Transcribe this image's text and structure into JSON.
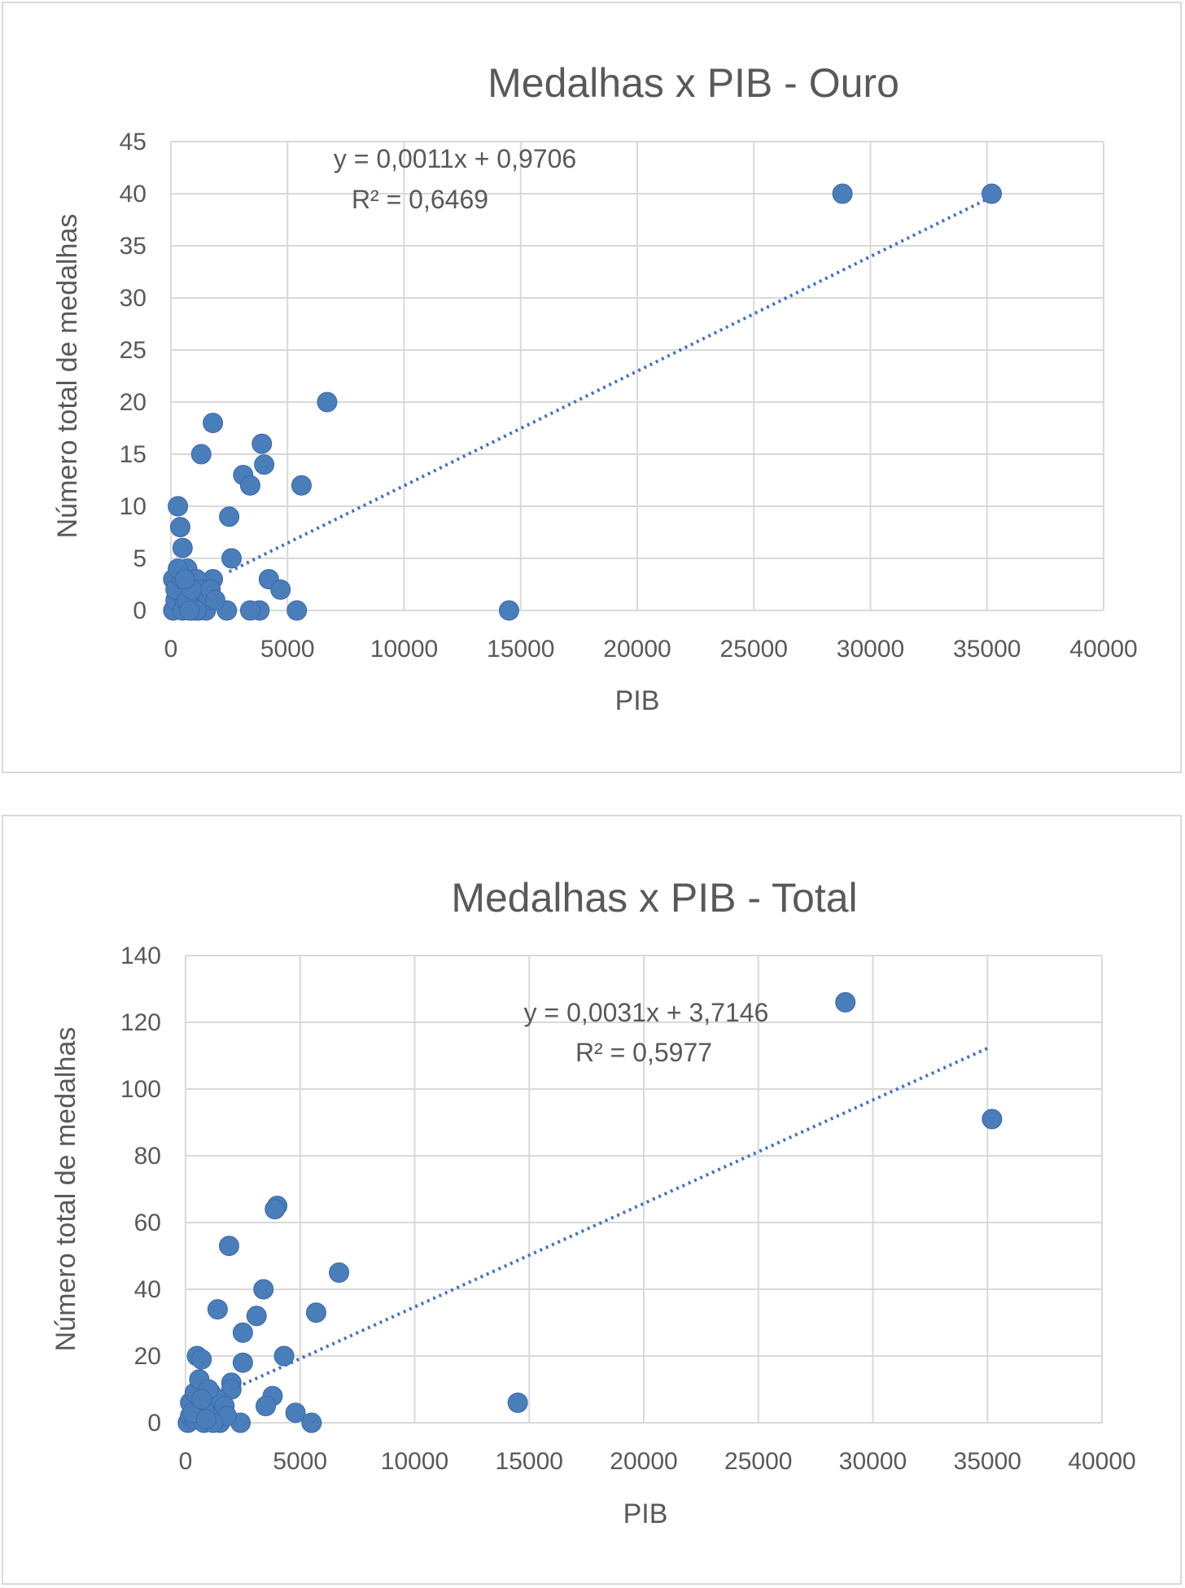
{
  "chart_data": [
    {
      "type": "scatter",
      "title": "Medalhas x PIB - Ouro",
      "xlabel": "PIB",
      "ylabel": "Número total de medalhas",
      "xlim": [
        0,
        40000
      ],
      "ylim": [
        0,
        45
      ],
      "xticks": [
        "0",
        "5000",
        "10000",
        "15000",
        "20000",
        "25000",
        "30000",
        "35000",
        "40000"
      ],
      "yticks": [
        "0",
        "5",
        "10",
        "15",
        "20",
        "25",
        "30",
        "35",
        "40",
        "45"
      ],
      "grid": true,
      "legend": "none",
      "color": "#4a7ebb",
      "trendline": {
        "equation": "y = 0,0011x + 0,9706",
        "r2": "R² = 0,6469",
        "slope": 0.0011,
        "intercept": 0.9706,
        "x_range": [
          2500,
          35000
        ]
      },
      "points": [
        [
          28800,
          40
        ],
        [
          35200,
          40
        ],
        [
          6700,
          20
        ],
        [
          1800,
          18
        ],
        [
          3900,
          16
        ],
        [
          1300,
          15
        ],
        [
          4000,
          14
        ],
        [
          3100,
          13
        ],
        [
          3400,
          12
        ],
        [
          5600,
          12
        ],
        [
          300,
          10
        ],
        [
          2500,
          9
        ],
        [
          400,
          8
        ],
        [
          500,
          6
        ],
        [
          2600,
          5
        ],
        [
          4200,
          3
        ],
        [
          4700,
          2
        ],
        [
          1800,
          3
        ],
        [
          14500,
          0
        ],
        [
          5400,
          0
        ],
        [
          3800,
          0
        ],
        [
          3400,
          0
        ],
        [
          2400,
          0
        ],
        [
          100,
          0
        ],
        [
          200,
          1
        ],
        [
          300,
          2
        ],
        [
          400,
          3
        ],
        [
          500,
          0
        ],
        [
          600,
          1
        ],
        [
          700,
          4
        ],
        [
          800,
          2
        ],
        [
          900,
          0
        ],
        [
          1000,
          1
        ],
        [
          1100,
          3
        ],
        [
          1200,
          0
        ],
        [
          1300,
          2
        ],
        [
          1400,
          1
        ],
        [
          1500,
          0
        ],
        [
          1600,
          1
        ],
        [
          100,
          3
        ],
        [
          200,
          2
        ],
        [
          500,
          3
        ],
        [
          700,
          1
        ],
        [
          900,
          2
        ],
        [
          1100,
          0
        ],
        [
          1700,
          2
        ],
        [
          1900,
          1
        ],
        [
          300,
          4
        ],
        [
          600,
          3
        ],
        [
          800,
          0
        ]
      ]
    },
    {
      "type": "scatter",
      "title": "Medalhas x PIB - Total",
      "xlabel": "PIB",
      "ylabel": "Número total de medalhas",
      "xlim": [
        0,
        40000
      ],
      "ylim": [
        0,
        140
      ],
      "xticks": [
        "0",
        "5000",
        "10000",
        "15000",
        "20000",
        "25000",
        "30000",
        "35000",
        "40000"
      ],
      "yticks": [
        "0",
        "20",
        "40",
        "60",
        "80",
        "100",
        "120",
        "140"
      ],
      "grid": true,
      "legend": "none",
      "color": "#4a7ebb",
      "trendline": {
        "equation": "y = 0,0031x + 3,7146",
        "r2": "R² = 0,5977",
        "slope": 0.0031,
        "intercept": 3.7146,
        "x_range": [
          2000,
          35000
        ]
      },
      "points": [
        [
          28800,
          126
        ],
        [
          35200,
          91
        ],
        [
          4000,
          65
        ],
        [
          3900,
          64
        ],
        [
          1900,
          53
        ],
        [
          6700,
          45
        ],
        [
          3400,
          40
        ],
        [
          1400,
          34
        ],
        [
          5700,
          33
        ],
        [
          3100,
          32
        ],
        [
          2500,
          27
        ],
        [
          500,
          20
        ],
        [
          4300,
          20
        ],
        [
          700,
          19
        ],
        [
          2500,
          18
        ],
        [
          14500,
          6
        ],
        [
          3800,
          8
        ],
        [
          3500,
          5
        ],
        [
          4800,
          3
        ],
        [
          5500,
          0
        ],
        [
          2400,
          0
        ],
        [
          2000,
          12
        ],
        [
          2000,
          10
        ],
        [
          100,
          0
        ],
        [
          200,
          2
        ],
        [
          300,
          5
        ],
        [
          400,
          1
        ],
        [
          500,
          8
        ],
        [
          600,
          3
        ],
        [
          700,
          11
        ],
        [
          800,
          0
        ],
        [
          900,
          6
        ],
        [
          1000,
          2
        ],
        [
          1100,
          9
        ],
        [
          1200,
          4
        ],
        [
          1300,
          1
        ],
        [
          1400,
          7
        ],
        [
          1500,
          0
        ],
        [
          1600,
          3
        ],
        [
          1700,
          5
        ],
        [
          1800,
          2
        ],
        [
          200,
          6
        ],
        [
          400,
          9
        ],
        [
          600,
          13
        ],
        [
          800,
          4
        ],
        [
          1000,
          10
        ],
        [
          1200,
          0
        ],
        [
          300,
          3
        ],
        [
          700,
          7
        ],
        [
          900,
          1
        ]
      ]
    }
  ]
}
